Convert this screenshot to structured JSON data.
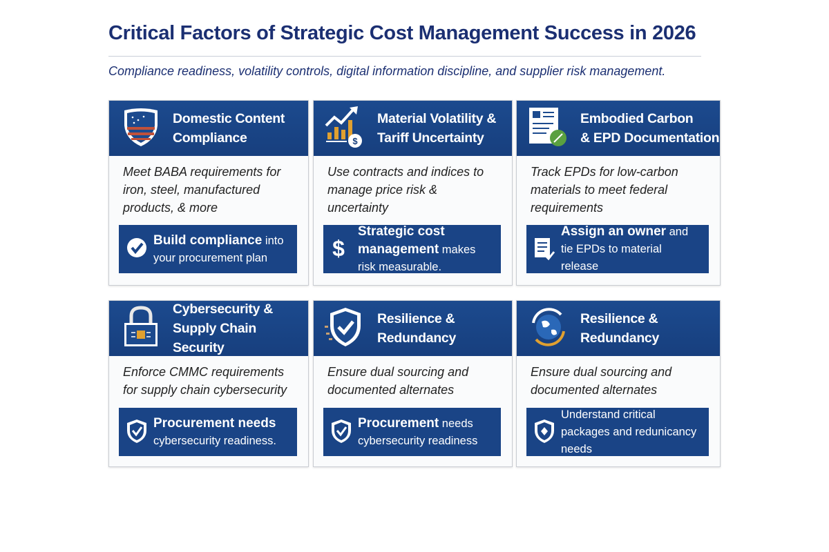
{
  "title": "Critical Factors of Strategic Cost Management Success in 2026",
  "subtitle": "Compliance readiness, volatility controls, digital information discipline, and supplier risk management.",
  "colors": {
    "navy": "#1b2f72",
    "header_blue": "#1c4a8e",
    "accent_orange": "#e0a030",
    "green": "#5aa040"
  },
  "cards": [
    {
      "icon": "flag-shield-icon",
      "title_1": "Domestic Content",
      "title_2": "Compliance",
      "description": "Meet BABA requirements for iron, steel, manufactured products, & more",
      "callout_icon": "check-circle-icon",
      "callout_bold": "Build compliance",
      "callout_rest": "into your procurement plan"
    },
    {
      "icon": "rising-chart-dollar-icon",
      "title_1": "Material Volatility &",
      "title_2": "Tariff Uncertainty",
      "description": "Use contracts and indices to manage price risk & uncertainty",
      "callout_icon": "dollar-icon",
      "callout_bold": "Strategic cost management",
      "callout_rest": "makes risk measurable."
    },
    {
      "icon": "document-leaf-icon",
      "title_1": "Embodied Carbon",
      "title_2": "& EPD Documentation",
      "description": "Track EPDs for low-carbon materials to meet federal requirements",
      "callout_icon": "checklist-icon",
      "callout_bold": "Assign an owner",
      "callout_rest": "and tie EPDs to material release"
    },
    {
      "icon": "padlock-chip-icon",
      "title_1": "Cybersecurity &",
      "title_2": "Supply Chain Security",
      "description": "Enforce CMMC requirements for supply chain cybersecurity",
      "callout_icon": "shield-check-icon",
      "callout_bold": "Procurement needs",
      "callout_rest": "cybersecurity readiness."
    },
    {
      "icon": "shield-check-icon",
      "title_1": "Resilience &",
      "title_2": "Redundancy",
      "description": "Ensure dual sourcing and documented alternates",
      "callout_icon": "shield-check-icon",
      "callout_bold": "Procurement",
      "callout_rest": "needs cybersecurity readiness"
    },
    {
      "icon": "globe-cycle-icon",
      "title_1": "Resilience &",
      "title_2": "Redundancy",
      "description": "Ensure dual sourcing and documented alternates",
      "callout_icon": "shield-diamond-icon",
      "callout_bold": "",
      "callout_rest": "Understand critical packages and redunicancy needs"
    }
  ]
}
